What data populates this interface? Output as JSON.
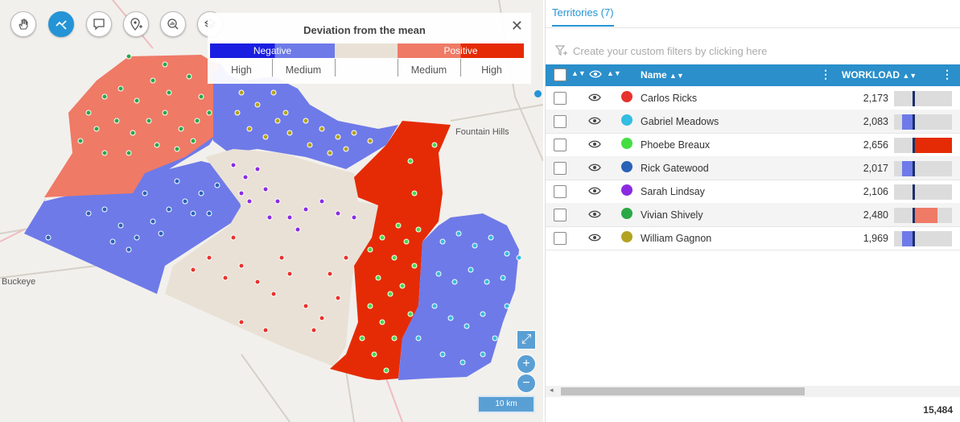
{
  "map": {
    "places": [
      "Fountain Hills",
      "Buckeye"
    ],
    "scale_label": "10 km",
    "tools": [
      "hand-icon",
      "lasso-select-icon",
      "comment-icon",
      "add-pin-icon",
      "analyze-icon",
      "layers-icon"
    ]
  },
  "legend": {
    "title": "Deviation from the mean",
    "negative_label": "Negative",
    "positive_label": "Positive",
    "high_left": "High",
    "medium_left": "Medium",
    "medium_right": "Medium",
    "high_right": "High",
    "colors": {
      "neg_high": "#1a1ee0",
      "neg_medium": "#6e7ae8",
      "neutral": "#e9e1d6",
      "pos_medium": "#ef7a66",
      "pos_high": "#e52b05"
    }
  },
  "panel": {
    "tab_label": "Territories (7)",
    "filter_placeholder": "Create your custom filters by clicking here",
    "col_name": "Name",
    "col_workload": "WORKLOAD",
    "total": "15,484",
    "rows": [
      {
        "name": "Carlos Ricks",
        "workload": "2,173",
        "color": "#e8322d",
        "deviation_level": "neutral"
      },
      {
        "name": "Gabriel Meadows",
        "workload": "2,083",
        "color": "#33bde0",
        "deviation_level": "negative-medium"
      },
      {
        "name": "Phoebe Breaux",
        "workload": "2,656",
        "color": "#44dd44",
        "deviation_level": "positive-high"
      },
      {
        "name": "Rick Gatewood",
        "workload": "2,017",
        "color": "#2a62b8",
        "deviation_level": "negative-medium"
      },
      {
        "name": "Sarah Lindsay",
        "workload": "2,106",
        "color": "#8a2be2",
        "deviation_level": "neutral"
      },
      {
        "name": "Vivian Shively",
        "workload": "2,480",
        "color": "#2aa845",
        "deviation_level": "positive-medium"
      },
      {
        "name": "William Gagnon",
        "workload": "1,969",
        "color": "#b3a222",
        "deviation_level": "negative-medium"
      }
    ]
  }
}
